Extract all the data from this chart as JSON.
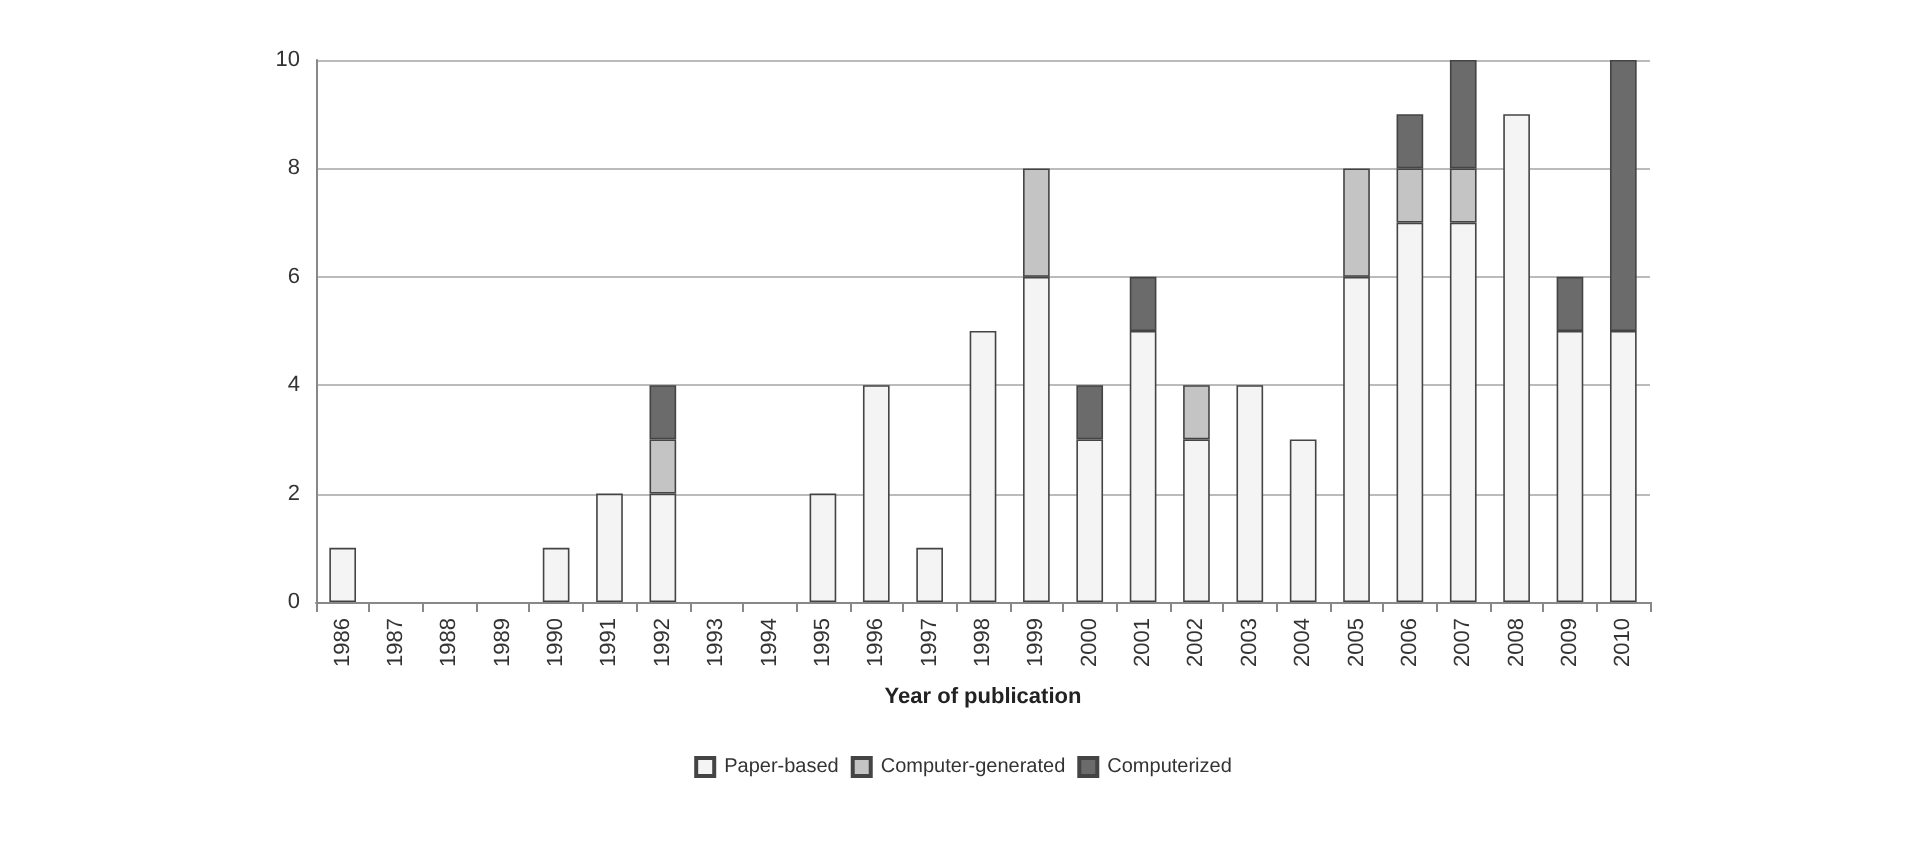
{
  "chart_data": {
    "type": "bar",
    "stacked": true,
    "xlabel": "Year of publication",
    "categories": [
      "1986",
      "1987",
      "1988",
      "1989",
      "1990",
      "1991",
      "1992",
      "1993",
      "1994",
      "1995",
      "1996",
      "1997",
      "1998",
      "1999",
      "2000",
      "2001",
      "2002",
      "2003",
      "2004",
      "2005",
      "2006",
      "2007",
      "2008",
      "2009",
      "2010"
    ],
    "series": [
      {
        "name": "Paper-based",
        "color": "#f4f4f4",
        "values": [
          1,
          0,
          0,
          0,
          1,
          2,
          2,
          0,
          0,
          2,
          4,
          1,
          5,
          6,
          3,
          5,
          3,
          4,
          3,
          6,
          7,
          7,
          9,
          5,
          5
        ]
      },
      {
        "name": "Computer-generated",
        "color": "#c4c4c4",
        "values": [
          0,
          0,
          0,
          0,
          0,
          0,
          1,
          0,
          0,
          0,
          0,
          0,
          0,
          2,
          0,
          0,
          1,
          0,
          0,
          2,
          1,
          1,
          0,
          0,
          0
        ]
      },
      {
        "name": "Computerized",
        "color": "#6b6b6b",
        "values": [
          0,
          0,
          0,
          0,
          0,
          0,
          1,
          0,
          0,
          0,
          0,
          0,
          0,
          0,
          1,
          1,
          0,
          0,
          0,
          0,
          1,
          2,
          0,
          1,
          5
        ]
      }
    ],
    "ylim": [
      0,
      10
    ],
    "yticks": [
      0,
      2,
      4,
      6,
      8,
      10
    ],
    "grid": "y",
    "legend": "bottom"
  }
}
